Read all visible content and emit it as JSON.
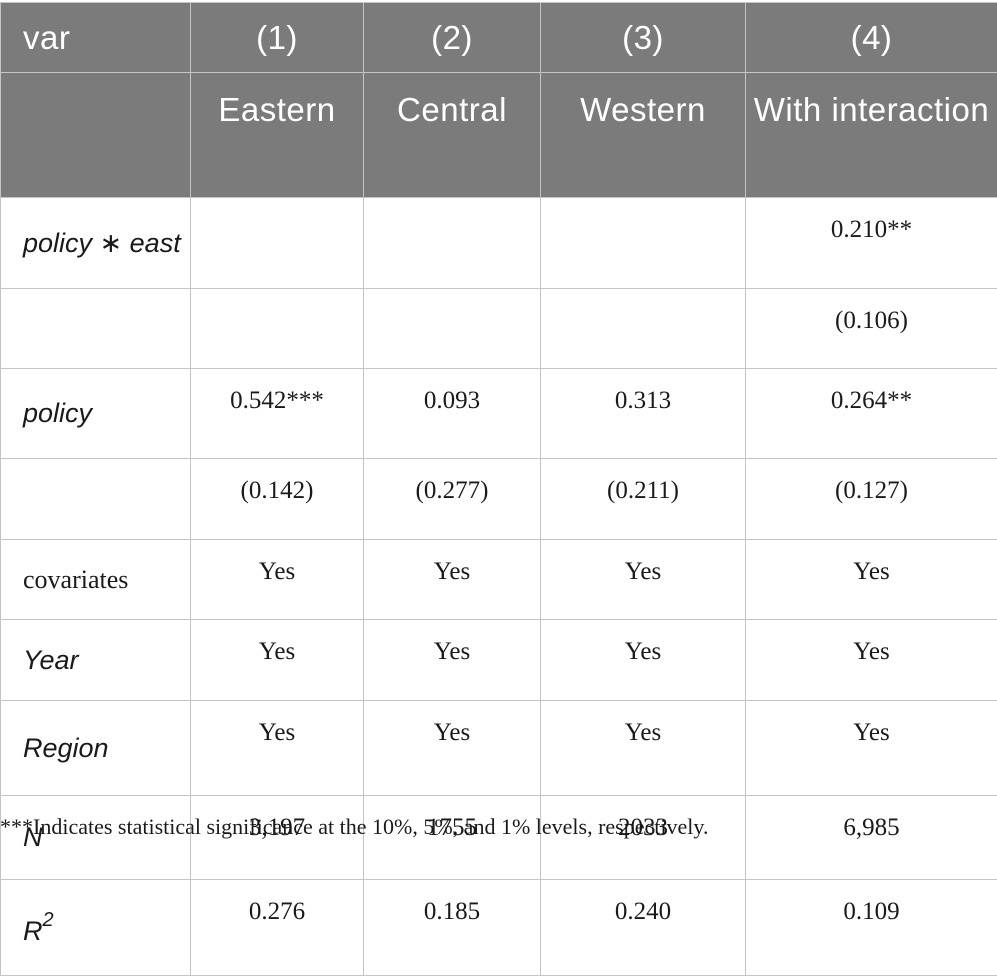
{
  "header": {
    "var_label": "var",
    "columns": [
      {
        "num": "(1)",
        "name": "Eastern"
      },
      {
        "num": "(2)",
        "name": "Central"
      },
      {
        "num": "(3)",
        "name": "Western"
      },
      {
        "num": "(4)",
        "name": "With interaction"
      }
    ]
  },
  "rows": {
    "policy_east": {
      "label": "policy ∗ east",
      "values": [
        "",
        "",
        "",
        "0.210**"
      ]
    },
    "policy_east_se": {
      "label": "",
      "values": [
        "",
        "",
        "",
        "(0.106)"
      ]
    },
    "policy": {
      "label": "policy",
      "values": [
        "0.542***",
        "0.093",
        "0.313",
        "0.264**"
      ]
    },
    "policy_se": {
      "label": "",
      "values": [
        "(0.142)",
        "(0.277)",
        "(0.211)",
        "(0.127)"
      ]
    },
    "covariates": {
      "label": "covariates",
      "values": [
        "Yes",
        "Yes",
        "Yes",
        "Yes"
      ]
    },
    "year": {
      "label": "Year",
      "values": [
        "Yes",
        "Yes",
        "Yes",
        "Yes"
      ]
    },
    "region": {
      "label": "Region",
      "values": [
        "Yes",
        "Yes",
        "Yes",
        "Yes"
      ]
    },
    "n": {
      "label": "N",
      "values": [
        "3,197",
        "1755",
        "2033",
        "6,985"
      ]
    },
    "r2": {
      "label": "R",
      "label_sup": "2",
      "values": [
        "0.276",
        "0.185",
        "0.240",
        "0.109"
      ]
    }
  },
  "footnote": "***Indicates statistical significance at the 10%, 5%, and 1% levels, respectively."
}
